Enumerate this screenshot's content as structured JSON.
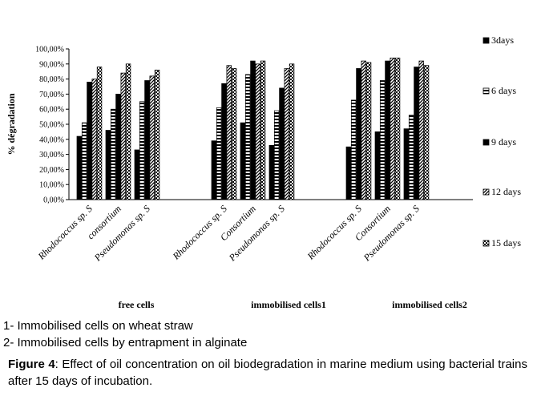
{
  "chart_data": {
    "type": "bar",
    "title": "",
    "xlabel": "",
    "ylabel": "% dégradation",
    "ylim": [
      0,
      100
    ],
    "y_ticks": [
      "0,00%",
      "10,00%",
      "20,00%",
      "30,00%",
      "40,00%",
      "50,00%",
      "60,00%",
      "70,00%",
      "80,00%",
      "90,00%",
      "100,00%"
    ],
    "grid": false,
    "legend_position": "right",
    "groups": [
      {
        "label": "free cells",
        "categories": [
          "Rhodococcus sp. S",
          "consortium",
          "Pseudomonas sp. S"
        ],
        "series_values": [
          [
            42,
            46,
            33
          ],
          [
            51,
            60,
            65
          ],
          [
            78,
            70,
            79
          ],
          [
            80,
            84,
            82
          ],
          [
            88,
            90,
            86
          ]
        ]
      },
      {
        "label": "immobilised cells1",
        "categories": [
          "Rhodococcus sp. S",
          "Consortium",
          "Pseudomonas sp. S"
        ],
        "series_values": [
          [
            39,
            51,
            36
          ],
          [
            61,
            83,
            59
          ],
          [
            77,
            92,
            74
          ],
          [
            89,
            90,
            87
          ],
          [
            87,
            92,
            90
          ]
        ]
      },
      {
        "label": "immobilised cells2",
        "categories": [
          "Rhodococcus sp. S",
          "Consortium",
          "Pseudomonas sp. S"
        ],
        "series_values": [
          [
            35,
            45,
            47
          ],
          [
            66,
            79,
            56
          ],
          [
            87,
            92,
            88
          ],
          [
            92,
            94,
            92
          ],
          [
            91,
            94,
            89
          ]
        ]
      }
    ],
    "series": [
      {
        "name": "3days",
        "color": "#000000",
        "pattern": "solid"
      },
      {
        "name": "6 days",
        "color": "#000000",
        "pattern": "horizontal-stripes"
      },
      {
        "name": "9 days",
        "color": "#000000",
        "pattern": "solid"
      },
      {
        "name": "12 days",
        "color": "#000000",
        "pattern": "diagonal"
      },
      {
        "name": "15 days",
        "color": "#000000",
        "pattern": "checker"
      }
    ]
  },
  "notes": [
    "1- Immobilised cells on wheat straw",
    "2- Immobilised cells by entrapment in alginate"
  ],
  "caption": {
    "label": "Figure 4",
    "text": ": Effect of oil concentration on oil biodegradation in marine medium using bacterial trains  after 15 days of incubation."
  }
}
